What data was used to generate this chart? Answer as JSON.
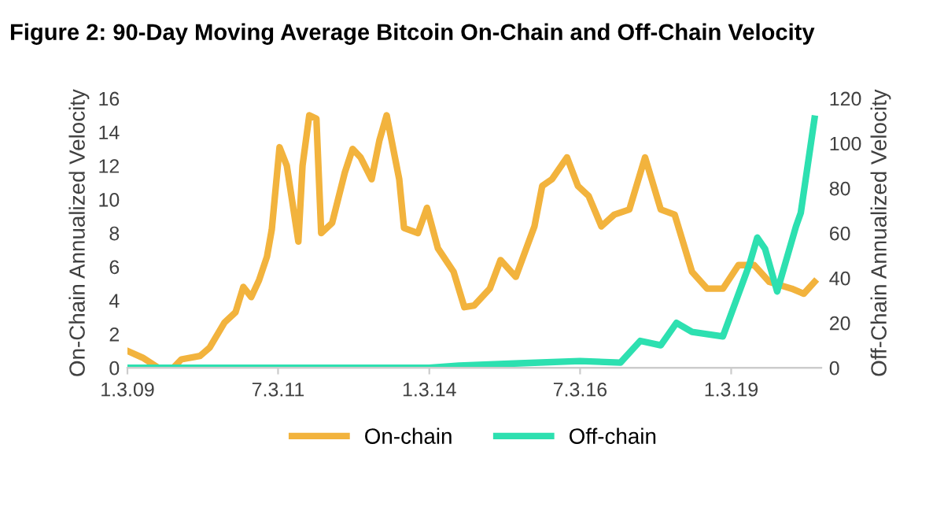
{
  "chart_data": {
    "type": "line",
    "title": "Figure 2: 90-Day Moving Average Bitcoin On-Chain and Off-Chain Velocity",
    "ylabel": "On-Chain Annualized Velocity",
    "y2label": "Off-Chain Annualized Velocity",
    "xlim": [
      "2009-01-03",
      "2020-07-01"
    ],
    "xticks": [
      {
        "value": "2009-01-03",
        "label": "1.3.09"
      },
      {
        "value": "2011-07-03",
        "label": "7.3.11"
      },
      {
        "value": "2014-01-03",
        "label": "1.3.14"
      },
      {
        "value": "2016-07-03",
        "label": "7.3.16"
      },
      {
        "value": "2019-01-03",
        "label": "1.3.19"
      }
    ],
    "ylim": [
      0,
      16
    ],
    "yticks": [
      0,
      2,
      4,
      6,
      8,
      10,
      12,
      14,
      16
    ],
    "y2lim": [
      0,
      120
    ],
    "y2ticks": [
      0,
      20,
      40,
      60,
      80,
      100,
      120
    ],
    "grid": false,
    "legend": "bottom",
    "marker": "none",
    "line_style": "solid",
    "series": [
      {
        "name": "On-chain",
        "color": "#f2b33d",
        "x": [
          "2009-01-03",
          "2009-04-05",
          "2009-07-09",
          "2009-10-08",
          "2009-11-25",
          "2010-03-18",
          "2010-05-15",
          "2010-08-14",
          "2010-10-19",
          "2010-12-05",
          "2011-01-22",
          "2011-03-10",
          "2011-04-27",
          "2011-05-26",
          "2011-07-12",
          "2011-08-25",
          "2011-11-03",
          "2011-11-28",
          "2012-01-08",
          "2012-02-20",
          "2012-03-20",
          "2012-05-25",
          "2012-08-10",
          "2012-09-26",
          "2012-11-13",
          "2013-01-19",
          "2013-03-07",
          "2013-04-20",
          "2013-07-05",
          "2013-08-03",
          "2013-10-26",
          "2013-12-20",
          "2014-02-24",
          "2014-05-30",
          "2014-08-03",
          "2014-10-01",
          "2015-01-04",
          "2015-03-10",
          "2015-06-10",
          "2015-10-01",
          "2015-11-17",
          "2016-01-15",
          "2016-04-15",
          "2016-06-20",
          "2016-08-24",
          "2016-11-09",
          "2017-01-26",
          "2017-04-27",
          "2017-07-31",
          "2017-11-03",
          "2018-01-26",
          "2018-05-11",
          "2018-08-11",
          "2018-11-14",
          "2019-02-16",
          "2019-05-22",
          "2019-08-22",
          "2020-01-04",
          "2020-03-17",
          "2020-05-21"
        ],
        "values": [
          1.0,
          0.6,
          0.0,
          0.0,
          0.5,
          0.7,
          1.2,
          2.7,
          3.3,
          4.8,
          4.2,
          5.2,
          6.6,
          8.2,
          13.1,
          12.0,
          7.5,
          12.0,
          15.0,
          14.8,
          8.0,
          8.6,
          11.6,
          13.0,
          12.5,
          11.2,
          13.5,
          15.0,
          11.2,
          8.3,
          8.0,
          9.5,
          7.1,
          5.7,
          3.6,
          3.7,
          4.7,
          6.4,
          5.4,
          8.4,
          10.8,
          11.2,
          12.5,
          10.8,
          10.2,
          8.4,
          9.1,
          9.4,
          12.5,
          9.4,
          9.1,
          5.7,
          4.7,
          4.7,
          6.1,
          6.1,
          5.1,
          4.7,
          4.4,
          5.1
        ]
      },
      {
        "name": "Off-chain",
        "color": "#2de0b0",
        "axis": "y2",
        "x": [
          "2009-01-03",
          "2012-01-01",
          "2014-01-03",
          "2014-07-02",
          "2015-07-02",
          "2016-07-02",
          "2017-03-04",
          "2017-07-02",
          "2017-11-03",
          "2018-02-06",
          "2018-05-11",
          "2018-11-14",
          "2019-04-23",
          "2019-06-10",
          "2019-07-27",
          "2019-10-08",
          "2020-01-30",
          "2020-02-28",
          "2020-05-21"
        ],
        "values": [
          0,
          0,
          0,
          1,
          2,
          3,
          2.3,
          12,
          10,
          20,
          16,
          14,
          46,
          58,
          53,
          34,
          63,
          69,
          111
        ]
      }
    ]
  }
}
